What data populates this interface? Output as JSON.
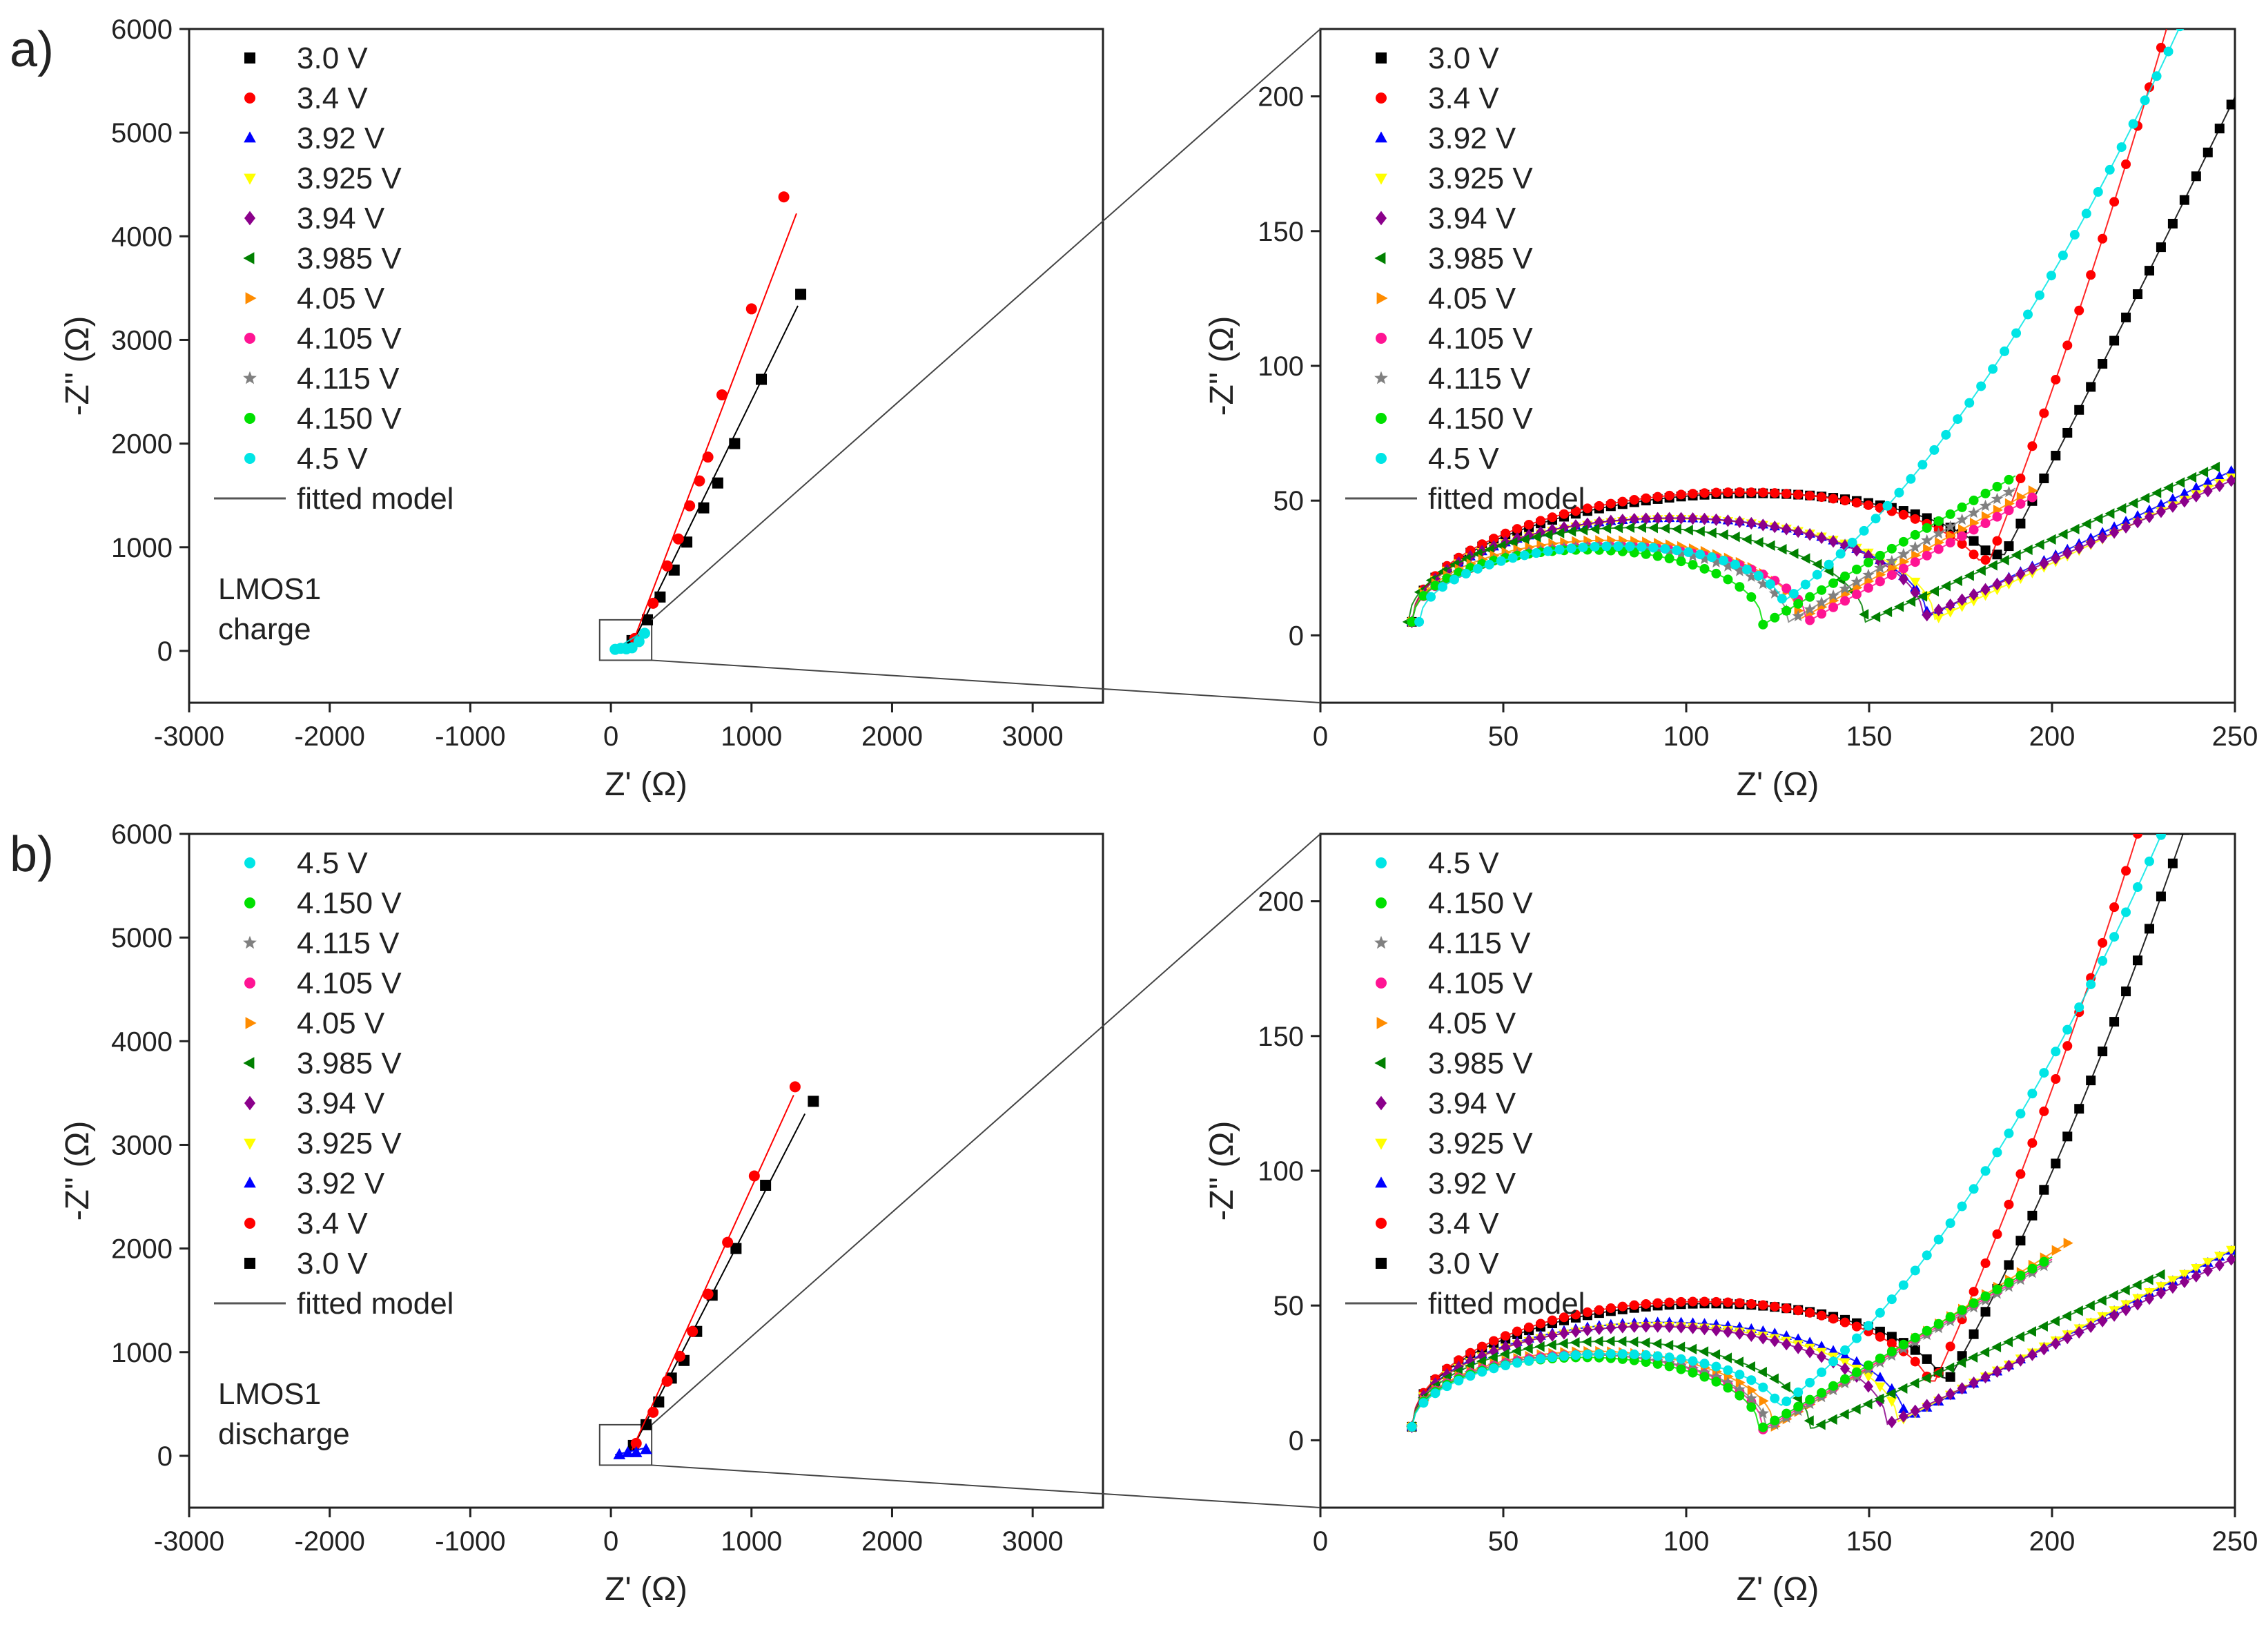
{
  "figure": {
    "panel_labels": [
      "a)",
      "b)"
    ]
  },
  "chart_data": [
    {
      "id": "a-full",
      "type": "scatter",
      "panel": "a)",
      "xlabel": "Z' (Ω)",
      "ylabel": "-Z'' (Ω)",
      "xlim": [
        -3000,
        3500
      ],
      "ylim": [
        -500,
        6000
      ],
      "xticks": [
        "-3000",
        "-2000",
        "-1000",
        "0",
        "1000",
        "2000",
        "3000"
      ],
      "yticks": [
        "0",
        "1000",
        "2000",
        "3000",
        "4000",
        "5000",
        "6000"
      ],
      "annotation": [
        "LMOS1",
        "charge"
      ],
      "legend": [
        "3.0 V",
        "3.4 V",
        "3.92 V",
        "3.925 V",
        "3.94 V",
        "3.985 V",
        "4.05 V",
        "4.105 V",
        "4.115 V",
        "4.150 V",
        "4.5 V",
        "fitted model"
      ],
      "series": [
        {
          "name": "3.0 V",
          "color": "#000000",
          "marker": "square",
          "x": [
            150,
            260,
            350,
            450,
            540,
            660,
            760,
            880,
            1070,
            1350
          ],
          "y": [
            100,
            300,
            520,
            780,
            1050,
            1380,
            1620,
            2000,
            2620,
            3440
          ],
          "fit": [
            [
              150,
              60
            ],
            [
              1330,
              3330
            ]
          ]
        },
        {
          "name": "3.4 V",
          "color": "#ff0000",
          "marker": "circle",
          "x": [
            170,
            300,
            400,
            480,
            560,
            630,
            690,
            790,
            1000,
            1230
          ],
          "y": [
            120,
            460,
            820,
            1080,
            1400,
            1640,
            1870,
            2470,
            3300,
            4380
          ],
          "fit": [
            [
              150,
              60
            ],
            [
              1320,
              4220
            ]
          ]
        },
        {
          "name": "4.5 V",
          "color": "#00e5e5",
          "marker": "circle",
          "x": [
            30,
            70,
            110,
            150,
            200,
            240
          ],
          "y": [
            15,
            25,
            20,
            30,
            90,
            170
          ],
          "fit": [
            [
              20,
              10
            ],
            [
              260,
              210
            ]
          ]
        }
      ]
    },
    {
      "id": "a-zoom",
      "type": "scatter",
      "panel": "a)",
      "xlabel": "Z' (Ω)",
      "ylabel": "-Z'' (Ω)",
      "xlim": [
        0,
        250
      ],
      "ylim": [
        -25,
        225
      ],
      "xticks": [
        "0",
        "50",
        "100",
        "150",
        "200",
        "250"
      ],
      "yticks": [
        "0",
        "50",
        "100",
        "150",
        "200"
      ],
      "legend": [
        "3.0 V",
        "3.4 V",
        "3.92 V",
        "3.925 V",
        "3.94 V",
        "3.985 V",
        "4.05 V",
        "4.105 V",
        "4.115 V",
        "4.150 V",
        "4.5 V",
        "fitted model"
      ],
      "series": [
        {
          "name": "3.0 V",
          "color": "#000000",
          "marker": "square",
          "params": {
            "x0": 25,
            "dip": 187,
            "arc": 41,
            "dipY": 30,
            "slope": 2.6,
            "curv": 0.0015,
            "end": 250
          }
        },
        {
          "name": "3.4 V",
          "color": "#ff0000",
          "marker": "circle",
          "params": {
            "x0": 25,
            "dip": 183,
            "arc": 42,
            "dipY": 28,
            "slope": 3.5,
            "curv": 0.012,
            "end": 236
          }
        },
        {
          "name": "3.92 V",
          "color": "#0000ff",
          "marker": "triangle-up",
          "params": {
            "x0": 25,
            "dip": 166,
            "arc": 38,
            "dipY": 7,
            "slope": 0.65,
            "curv": 0.0,
            "end": 250
          }
        },
        {
          "name": "3.925 V",
          "color": "#ffff00",
          "marker": "triangle-down",
          "params": {
            "x0": 25,
            "dip": 168,
            "arc": 38,
            "dipY": 6,
            "slope": 0.65,
            "curv": 0.0,
            "end": 250
          }
        },
        {
          "name": "3.94 V",
          "color": "#8b008b",
          "marker": "diamond",
          "params": {
            "x0": 25,
            "dip": 165,
            "arc": 38,
            "dipY": 7,
            "slope": 0.6,
            "curv": 0.0,
            "end": 250
          }
        },
        {
          "name": "3.985 V",
          "color": "#008000",
          "marker": "triangle-left",
          "params": {
            "x0": 24,
            "dip": 149,
            "arc": 35,
            "dipY": 5,
            "slope": 0.6,
            "curv": 0.0,
            "end": 245
          }
        },
        {
          "name": "4.05 V",
          "color": "#ff8c00",
          "marker": "triangle-right",
          "params": {
            "x0": 25,
            "dip": 131,
            "arc": 30,
            "dipY": 6,
            "slope": 0.75,
            "curv": 0.0,
            "end": 195
          }
        },
        {
          "name": "4.105 V",
          "color": "#ff1493",
          "marker": "circle",
          "params": {
            "x0": 25,
            "dip": 133,
            "arc": 28,
            "dipY": 5,
            "slope": 0.75,
            "curv": 0.0,
            "end": 195
          }
        },
        {
          "name": "4.115 V",
          "color": "#808080",
          "marker": "star",
          "params": {
            "x0": 25,
            "dip": 128,
            "arc": 28,
            "dipY": 5,
            "slope": 0.8,
            "curv": 0.0,
            "end": 190
          }
        },
        {
          "name": "4.150 V",
          "color": "#00e000",
          "marker": "circle",
          "params": {
            "x0": 25,
            "dip": 121,
            "arc": 27,
            "dipY": 4,
            "slope": 0.8,
            "curv": 0.0,
            "end": 190
          }
        },
        {
          "name": "4.5 V",
          "color": "#00e5e5",
          "marker": "circle",
          "params": {
            "x0": 27,
            "dip": 127,
            "arc": 26,
            "dipY": 13,
            "slope": 1.0,
            "curv": 0.009,
            "end": 250
          }
        }
      ]
    },
    {
      "id": "b-full",
      "type": "scatter",
      "panel": "b)",
      "xlabel": "Z' (Ω)",
      "ylabel": "-Z'' (Ω)",
      "xlim": [
        -3000,
        3500
      ],
      "ylim": [
        -500,
        6000
      ],
      "xticks": [
        "-3000",
        "-2000",
        "-1000",
        "0",
        "1000",
        "2000",
        "3000"
      ],
      "yticks": [
        "0",
        "1000",
        "2000",
        "3000",
        "4000",
        "5000",
        "6000"
      ],
      "annotation": [
        "LMOS1",
        "discharge"
      ],
      "legend": [
        "4.5 V",
        "4.150 V",
        "4.115 V",
        "4.105 V",
        "4.05 V",
        "3.985 V",
        "3.94 V",
        "3.925 V",
        "3.92 V",
        "3.4 V",
        "3.0 V",
        "fitted model"
      ],
      "series": [
        {
          "name": "3.0 V",
          "color": "#000000",
          "marker": "square",
          "x": [
            160,
            250,
            340,
            430,
            520,
            610,
            720,
            890,
            1100,
            1440
          ],
          "y": [
            100,
            300,
            520,
            750,
            920,
            1200,
            1550,
            2000,
            2610,
            3420
          ],
          "fit": [
            [
              150,
              60
            ],
            [
              1380,
              3300
            ]
          ]
        },
        {
          "name": "3.4 V",
          "color": "#ff0000",
          "marker": "circle",
          "x": [
            180,
            300,
            400,
            490,
            580,
            690,
            830,
            1020,
            1310
          ],
          "y": [
            120,
            420,
            720,
            960,
            1200,
            1560,
            2060,
            2700,
            3560
          ],
          "fit": [
            [
              150,
              60
            ],
            [
              1300,
              3480
            ]
          ]
        },
        {
          "name": "3.92 V",
          "color": "#0000ff",
          "marker": "triangle-up",
          "x": [
            60,
            120,
            180,
            250
          ],
          "y": [
            10,
            30,
            30,
            60
          ],
          "fit": [
            [
              30,
              10
            ],
            [
              260,
              80
            ]
          ]
        }
      ]
    },
    {
      "id": "b-zoom",
      "type": "scatter",
      "panel": "b)",
      "xlabel": "Z' (Ω)",
      "ylabel": "-Z'' (Ω)",
      "xlim": [
        0,
        250
      ],
      "ylim": [
        -25,
        225
      ],
      "xticks": [
        "0",
        "50",
        "100",
        "150",
        "200",
        "250"
      ],
      "yticks": [
        "0",
        "50",
        "100",
        "150",
        "200"
      ],
      "legend": [
        "4.5 V",
        "4.150 V",
        "4.115 V",
        "4.105 V",
        "4.05 V",
        "3.985 V",
        "3.94 V",
        "3.925 V",
        "3.92 V",
        "3.4 V",
        "3.0 V",
        "fitted model"
      ],
      "series": [
        {
          "name": "3.0 V",
          "color": "#000000",
          "marker": "square",
          "params": {
            "x0": 25,
            "dip": 172,
            "arc": 41,
            "dipY": 23,
            "slope": 2.4,
            "curv": 0.012,
            "end": 248
          }
        },
        {
          "name": "3.4 V",
          "color": "#ff0000",
          "marker": "circle",
          "params": {
            "x0": 25,
            "dip": 168,
            "arc": 42,
            "dipY": 22,
            "slope": 3.0,
            "curv": 0.012,
            "end": 247
          }
        },
        {
          "name": "3.92 V",
          "color": "#0000ff",
          "marker": "triangle-up",
          "params": {
            "x0": 25,
            "dip": 160,
            "arc": 38,
            "dipY": 8,
            "slope": 0.7,
            "curv": 0.0,
            "end": 250
          }
        },
        {
          "name": "3.925 V",
          "color": "#ffff00",
          "marker": "triangle-down",
          "params": {
            "x0": 25,
            "dip": 158,
            "arc": 37,
            "dipY": 7,
            "slope": 0.7,
            "curv": 0.0,
            "end": 250
          }
        },
        {
          "name": "3.94 V",
          "color": "#8b008b",
          "marker": "diamond",
          "params": {
            "x0": 25,
            "dip": 155,
            "arc": 37,
            "dipY": 6,
            "slope": 0.65,
            "curv": 0.0,
            "end": 250
          }
        },
        {
          "name": "3.985 V",
          "color": "#008000",
          "marker": "triangle-left",
          "params": {
            "x0": 25,
            "dip": 134,
            "arc": 32,
            "dipY": 4,
            "slope": 0.6,
            "curv": 0.0,
            "end": 230
          }
        },
        {
          "name": "4.05 V",
          "color": "#ff8c00",
          "marker": "triangle-right",
          "params": {
            "x0": 25,
            "dip": 124,
            "arc": 28,
            "dipY": 5,
            "slope": 0.85,
            "curv": 0.0,
            "end": 205
          }
        },
        {
          "name": "4.105 V",
          "color": "#ff1493",
          "marker": "circle",
          "params": {
            "x0": 25,
            "dip": 121,
            "arc": 27,
            "dipY": 4,
            "slope": 0.8,
            "curv": 0.0,
            "end": 200
          }
        },
        {
          "name": "4.115 V",
          "color": "#808080",
          "marker": "star",
          "params": {
            "x0": 25,
            "dip": 122,
            "arc": 27,
            "dipY": 4,
            "slope": 0.8,
            "curv": 0.0,
            "end": 200
          }
        },
        {
          "name": "4.150 V",
          "color": "#00e000",
          "marker": "circle",
          "params": {
            "x0": 25,
            "dip": 120,
            "arc": 26,
            "dipY": 4,
            "slope": 0.8,
            "curv": 0.0,
            "end": 200
          }
        },
        {
          "name": "4.5 V",
          "color": "#00e5e5",
          "marker": "circle",
          "params": {
            "x0": 25,
            "dip": 126,
            "arc": 25,
            "dipY": 13,
            "slope": 1.0,
            "curv": 0.01,
            "end": 250
          }
        }
      ]
    }
  ],
  "legend_styles": {
    "3.0 V": {
      "color": "#000000",
      "marker": "square"
    },
    "3.4 V": {
      "color": "#ff0000",
      "marker": "circle"
    },
    "3.92 V": {
      "color": "#0000ff",
      "marker": "triangle-up"
    },
    "3.925 V": {
      "color": "#ffff00",
      "marker": "triangle-down"
    },
    "3.94 V": {
      "color": "#8b008b",
      "marker": "diamond"
    },
    "3.985 V": {
      "color": "#008000",
      "marker": "triangle-left"
    },
    "4.05 V": {
      "color": "#ff8c00",
      "marker": "triangle-right"
    },
    "4.105 V": {
      "color": "#ff1493",
      "marker": "circle"
    },
    "4.115 V": {
      "color": "#808080",
      "marker": "star"
    },
    "4.150 V": {
      "color": "#00e000",
      "marker": "circle"
    },
    "4.5 V": {
      "color": "#00e5e5",
      "marker": "circle"
    },
    "fitted model": {
      "color": "#555555",
      "marker": "line"
    }
  }
}
